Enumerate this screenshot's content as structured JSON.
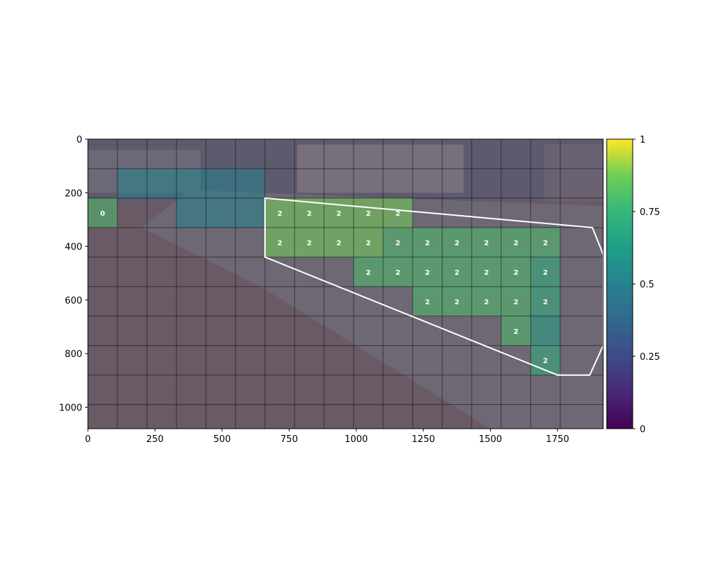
{
  "chart_data": {
    "type": "heatmap",
    "title": "",
    "xlabel": "",
    "ylabel": "",
    "xlim": [
      0,
      1920
    ],
    "ylim": [
      1080,
      0
    ],
    "x_ticks": [
      0,
      250,
      500,
      750,
      1000,
      1250,
      1500,
      1750
    ],
    "y_ticks": [
      0,
      200,
      400,
      600,
      800,
      1000
    ],
    "grid": {
      "cols": 16,
      "rows": 10,
      "cell_width": 110,
      "cell_height": 110,
      "line_color": "#000000"
    },
    "colormap": "viridis",
    "colorbar": {
      "min": 0,
      "max": 1,
      "ticks": [
        "0",
        "0.25",
        "0.5",
        "0.75",
        "1"
      ]
    },
    "cells": [
      {
        "col": 0,
        "row": 2,
        "value": 0.8,
        "label": "0"
      },
      {
        "col": 1,
        "row": 1,
        "value": 0.5,
        "label": ""
      },
      {
        "col": 2,
        "row": 1,
        "value": 0.5,
        "label": ""
      },
      {
        "col": 3,
        "row": 1,
        "value": 0.5,
        "label": ""
      },
      {
        "col": 3,
        "row": 2,
        "value": 0.5,
        "label": ""
      },
      {
        "col": 4,
        "row": 1,
        "value": 0.5,
        "label": ""
      },
      {
        "col": 4,
        "row": 2,
        "value": 0.5,
        "label": ""
      },
      {
        "col": 5,
        "row": 1,
        "value": 0.5,
        "label": ""
      },
      {
        "col": 5,
        "row": 2,
        "value": 0.5,
        "label": ""
      },
      {
        "col": 6,
        "row": 2,
        "value": 0.88,
        "label": "2"
      },
      {
        "col": 6,
        "row": 3,
        "value": 0.88,
        "label": "2"
      },
      {
        "col": 7,
        "row": 2,
        "value": 0.88,
        "label": "2"
      },
      {
        "col": 7,
        "row": 3,
        "value": 0.88,
        "label": "2"
      },
      {
        "col": 8,
        "row": 2,
        "value": 0.88,
        "label": "2"
      },
      {
        "col": 8,
        "row": 3,
        "value": 0.88,
        "label": "2"
      },
      {
        "col": 9,
        "row": 2,
        "value": 0.88,
        "label": "2"
      },
      {
        "col": 9,
        "row": 3,
        "value": 0.88,
        "label": "2"
      },
      {
        "col": 9,
        "row": 4,
        "value": 0.8,
        "label": "2"
      },
      {
        "col": 10,
        "row": 2,
        "value": 0.88,
        "label": "2"
      },
      {
        "col": 10,
        "row": 3,
        "value": 0.8,
        "label": "2"
      },
      {
        "col": 10,
        "row": 4,
        "value": 0.8,
        "label": "2"
      },
      {
        "col": 11,
        "row": 3,
        "value": 0.8,
        "label": "2"
      },
      {
        "col": 11,
        "row": 4,
        "value": 0.8,
        "label": "2"
      },
      {
        "col": 11,
        "row": 5,
        "value": 0.8,
        "label": "2"
      },
      {
        "col": 12,
        "row": 3,
        "value": 0.8,
        "label": "2"
      },
      {
        "col": 12,
        "row": 4,
        "value": 0.8,
        "label": "2"
      },
      {
        "col": 12,
        "row": 5,
        "value": 0.8,
        "label": "2"
      },
      {
        "col": 13,
        "row": 3,
        "value": 0.8,
        "label": "2"
      },
      {
        "col": 13,
        "row": 4,
        "value": 0.8,
        "label": "2"
      },
      {
        "col": 13,
        "row": 5,
        "value": 0.8,
        "label": "2"
      },
      {
        "col": 14,
        "row": 3,
        "value": 0.8,
        "label": "2"
      },
      {
        "col": 14,
        "row": 4,
        "value": 0.8,
        "label": "2"
      },
      {
        "col": 14,
        "row": 5,
        "value": 0.8,
        "label": "2"
      },
      {
        "col": 14,
        "row": 6,
        "value": 0.8,
        "label": "2"
      },
      {
        "col": 15,
        "row": 3,
        "value": 0.8,
        "label": "2"
      },
      {
        "col": 15,
        "row": 4,
        "value": 0.72,
        "label": "2"
      },
      {
        "col": 15,
        "row": 5,
        "value": 0.72,
        "label": "2"
      },
      {
        "col": 15,
        "row": 6,
        "value": 0.65,
        "label": ""
      },
      {
        "col": 15,
        "row": 7,
        "value": 0.72,
        "label": "2"
      }
    ],
    "region_polygon": [
      [
        660,
        220
      ],
      [
        1880,
        330
      ],
      [
        1920,
        430
      ],
      [
        1920,
        770
      ],
      [
        1870,
        880
      ],
      [
        1750,
        880
      ],
      [
        660,
        440
      ]
    ],
    "region_color": "#ffffff",
    "background": {
      "sky_color": "#5e5a6e",
      "road_color": "#6e6874",
      "grass_color": "#6a5a66",
      "buildings": [
        {
          "name": "building-left",
          "color": "#6c6878"
        },
        {
          "name": "building-center",
          "color": "#776f7b"
        },
        {
          "name": "building-right",
          "color": "#6a6272"
        }
      ]
    }
  }
}
